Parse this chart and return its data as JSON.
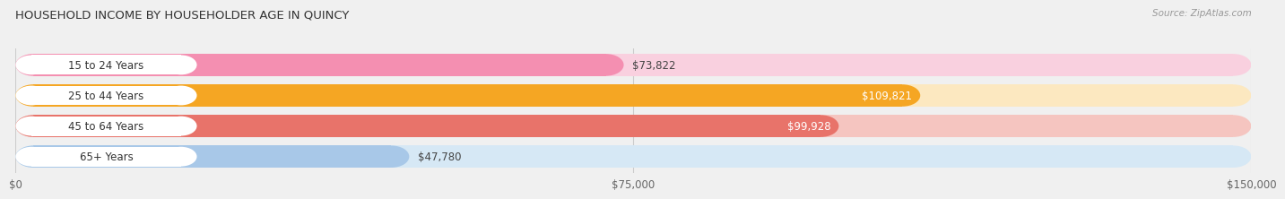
{
  "title": "HOUSEHOLD INCOME BY HOUSEHOLDER AGE IN QUINCY",
  "source": "Source: ZipAtlas.com",
  "categories": [
    "15 to 24 Years",
    "25 to 44 Years",
    "45 to 64 Years",
    "65+ Years"
  ],
  "values": [
    73822,
    109821,
    99928,
    47780
  ],
  "bar_colors": [
    "#f48fb1",
    "#f5a623",
    "#e8736a",
    "#a8c8e8"
  ],
  "bar_bg_colors": [
    "#f9d0df",
    "#fce8c0",
    "#f5c5c0",
    "#d6e8f5"
  ],
  "label_colors": [
    "#444444",
    "#ffffff",
    "#ffffff",
    "#444444"
  ],
  "x_ticks": [
    0,
    75000,
    150000
  ],
  "x_tick_labels": [
    "$0",
    "$75,000",
    "$150,000"
  ],
  "xlim": [
    0,
    150000
  ],
  "value_labels": [
    "$73,822",
    "$109,821",
    "$99,928",
    "$47,780"
  ],
  "page_bg_color": "#f0f0f0",
  "bar_row_bg": "#e8e8e8",
  "white_label_bg": "#ffffff"
}
